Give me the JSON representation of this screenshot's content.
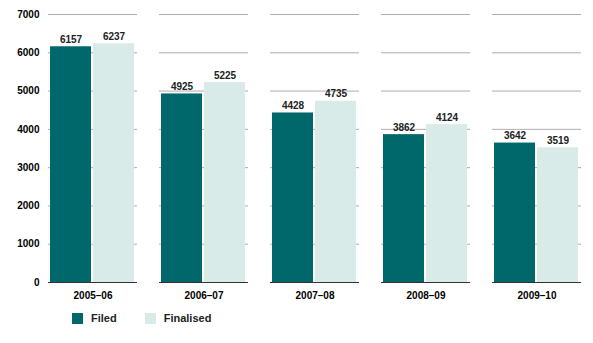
{
  "chart_data": {
    "type": "bar",
    "categories": [
      "2005–06",
      "2006–07",
      "2007–08",
      "2008–09",
      "2009–10"
    ],
    "series": [
      {
        "name": "Filed",
        "color": "#00686b",
        "values": [
          6157,
          4925,
          4428,
          3862,
          3642
        ]
      },
      {
        "name": "Finalised",
        "color": "#d9ebe9",
        "values": [
          6237,
          5225,
          4735,
          4124,
          3519
        ]
      }
    ],
    "ylim": [
      0,
      7000
    ],
    "yticks": [
      0,
      1000,
      2000,
      3000,
      4000,
      5000,
      6000,
      7000
    ],
    "grid": true,
    "data_labels": true,
    "legend": "bottom-left"
  }
}
